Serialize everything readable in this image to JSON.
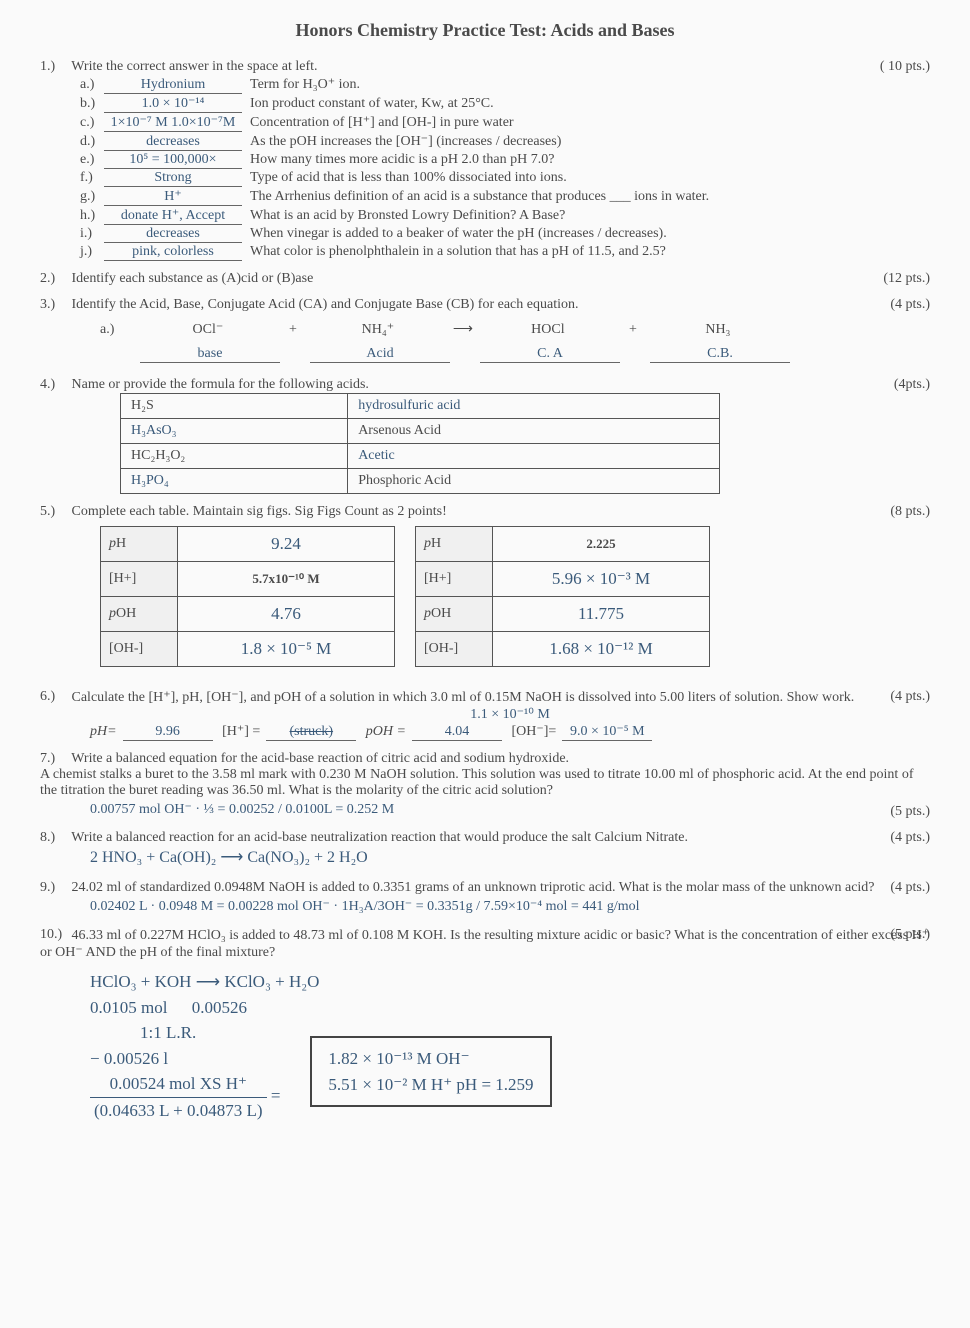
{
  "title": "Honors Chemistry Practice Test: Acids and Bases",
  "q1": {
    "num": "1.)",
    "text": "Write the correct answer in the space at left.",
    "pts": "( 10 pts.)",
    "items": [
      {
        "l": "a.)",
        "ans": "Hydronium",
        "txt": "Term for H₃O⁺ ion."
      },
      {
        "l": "b.)",
        "ans": "1.0 × 10⁻¹⁴",
        "txt": "Ion product constant of water, Kw, at 25°C."
      },
      {
        "l": "c.)",
        "ans": "1×10⁻⁷ M   1.0×10⁻⁷M",
        "txt": "Concentration of [H⁺] and [OH-] in pure water"
      },
      {
        "l": "d.)",
        "ans": "decreases",
        "txt": "As the pOH increases the [OH⁻] (increases / decreases)"
      },
      {
        "l": "e.)",
        "ans": "10⁵ = 100,000×",
        "txt": "How many times more acidic is a pH 2.0 than pH 7.0?"
      },
      {
        "l": "f.)",
        "ans": "Strong",
        "txt": "Type of acid that is less than 100% dissociated into ions."
      },
      {
        "l": "g.)",
        "ans": "H⁺",
        "txt": "The Arrhenius definition of an acid is a substance that produces ___ ions in water."
      },
      {
        "l": "h.)",
        "ans": "donate H⁺, Accept",
        "txt": "What is an acid by Bronsted Lowry Definition?  A Base?"
      },
      {
        "l": "i.)",
        "ans": "decreases",
        "txt": "When vinegar is added to a beaker of water the pH (increases / decreases)."
      },
      {
        "l": "j.)",
        "ans": "pink, colorless",
        "txt": "What color is phenolphthalein in a solution that has a pH of 11.5, and 2.5?"
      }
    ]
  },
  "q2": {
    "num": "2.)",
    "text": "Identify each substance as (A)cid or (B)ase",
    "pts": "(12 pts.)"
  },
  "q3": {
    "num": "3.)",
    "text": "Identify the Acid, Base, Conjugate Acid (CA) and Conjugate Base (CB) for each equation.",
    "pts": "(4 pts.)",
    "eq_letter": "a.)",
    "terms": [
      "OCl⁻",
      "+",
      "NH₄⁺",
      "⟶",
      "HOCl",
      "+",
      "NH₃"
    ],
    "answers": [
      "base",
      "",
      "Acid",
      "",
      "C. A",
      "",
      "C.B."
    ]
  },
  "q4": {
    "num": "4.)",
    "text": "Name or provide the formula for the following acids.",
    "pts": "(4pts.)",
    "rows": [
      {
        "l": "H₂S",
        "r": "hydrosulfuric acid",
        "r_hand": true
      },
      {
        "l": "H₃AsO₃",
        "r": "Arsenous Acid",
        "l_hand": true
      },
      {
        "l": "HC₂H₃O₂",
        "r": "Acetic",
        "r_hand": true
      },
      {
        "l": "H₃PO₄",
        "r": "Phosphoric Acid",
        "l_hand": true
      }
    ]
  },
  "q5": {
    "num": "5.)",
    "text": "Complete each table. Maintain sig figs. Sig Figs Count as 2 points!",
    "pts": "(8 pts.)",
    "tableA": [
      {
        "label": "pH",
        "val": "9.24",
        "hand": true
      },
      {
        "label": "[H+]",
        "val": "5.7x10⁻¹⁰ M",
        "hand": false
      },
      {
        "label": "pOH",
        "val": "4.76",
        "hand": true
      },
      {
        "label": "[OH-]",
        "val": "1.8 × 10⁻⁵ M",
        "hand": true
      }
    ],
    "tableB": [
      {
        "label": "pH",
        "val": "2.225",
        "hand": false
      },
      {
        "label": "[H+]",
        "val": "5.96 × 10⁻³ M",
        "hand": true
      },
      {
        "label": "pOH",
        "val": "11.775",
        "hand": true
      },
      {
        "label": "[OH-]",
        "val": "1.68 × 10⁻¹² M",
        "hand": true
      }
    ]
  },
  "q6": {
    "num": "6.)",
    "text": "Calculate the [H⁺], pH, [OH⁻], and pOH of a solution in which 3.0 ml of 0.15M NaOH is dissolved into 5.00 liters of solution.    Show work.",
    "pts": "(4 pts.)",
    "work_top": "1.1 × 10⁻¹⁰ M",
    "ph_label": "pH=",
    "ph": "9.96",
    "h_label": "[H⁺] =",
    "h": "(struck)",
    "poh_label": "pOH =",
    "poh": "4.04",
    "oh_label": "[OH⁻]=",
    "oh": "9.0 × 10⁻⁵ M"
  },
  "q7": {
    "num": "7.)",
    "text": "Write a balanced equation for the acid-base reaction of citric acid and sodium hydroxide.\nA chemist stalks a buret to the 3.58 ml mark with 0.230 M NaOH solution. This solution was used to titrate 10.00 ml of phosphoric acid. At the end point of the titration the buret reading was 36.50 ml. What is the molarity of the citric acid solution?",
    "pts": "(5 pts.)",
    "work": "0.00757 mol OH⁻ · ⅓ =  0.00252 / 0.0100L  =  0.252 M",
    "strike": "citric"
  },
  "q8": {
    "num": "8.)",
    "text": "Write a balanced reaction for an acid-base neutralization reaction that would produce the salt Calcium Nitrate.",
    "pts": "(4 pts.)",
    "work": "2 HNO₃   +   Ca(OH)₂   ⟶   Ca(NO₃)₂   +   2 H₂O"
  },
  "q9": {
    "num": "9.)",
    "text": "24.02 ml of standardized 0.0948M NaOH is added to 0.3351 grams of an unknown triprotic acid. What is the molar mass of the unknown acid?",
    "pts": "(4 pts.)",
    "work": "0.02402 L · 0.0948 M = 0.00228 mol OH⁻ · 1H₃A/3OH⁻ =  0.3351g / 7.59×10⁻⁴ mol  =  441 g/mol"
  },
  "q10": {
    "num": "10.)",
    "text": "46.33 ml of 0.227M HClO₃ is added to 48.73 ml of 0.108 M KOH. Is the resulting mixture acidic or basic? What is the concentration of either excess H⁺ or OH⁻ AND the pH of the final mixture?",
    "pts": "(5 pts.)",
    "line1": "HClO₃  +  KOH  ⟶  KClO₃  +  H₂O",
    "line2a": "0.0105 mol",
    "line2b": "0.00526",
    "line3": "1:1   L.R.",
    "line4": "− 0.00526 l",
    "frac_num": "0.00524 mol XS H⁺",
    "frac_den": "(0.04633 L + 0.04873 L)",
    "box1": "1.82 × 10⁻¹³ M OH⁻",
    "box2": "5.51 × 10⁻² M H⁺      pH = 1.259"
  }
}
